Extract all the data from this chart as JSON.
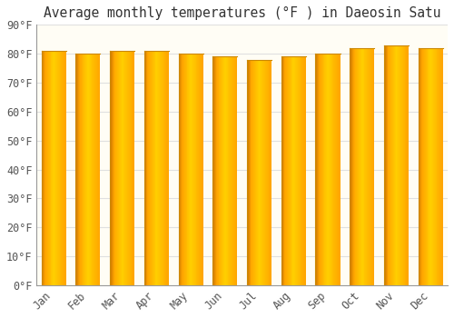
{
  "title": "Average monthly temperatures (°F ) in Daeosin Satu",
  "months": [
    "Jan",
    "Feb",
    "Mar",
    "Apr",
    "May",
    "Jun",
    "Jul",
    "Aug",
    "Sep",
    "Oct",
    "Nov",
    "Dec"
  ],
  "values": [
    81,
    80,
    81,
    81,
    80,
    79,
    78,
    79,
    80,
    82,
    83,
    82
  ],
  "bar_color_main": "#FFA520",
  "bar_color_light": "#FFD060",
  "bar_color_dark": "#E89000",
  "background_color": "#FFFFFF",
  "plot_bg_color": "#FFFDF5",
  "grid_color": "#E0E0E0",
  "ylim": [
    0,
    90
  ],
  "yticks": [
    0,
    10,
    20,
    30,
    40,
    50,
    60,
    70,
    80,
    90
  ],
  "title_fontsize": 10.5,
  "tick_fontsize": 8.5,
  "tick_color": "#555555"
}
